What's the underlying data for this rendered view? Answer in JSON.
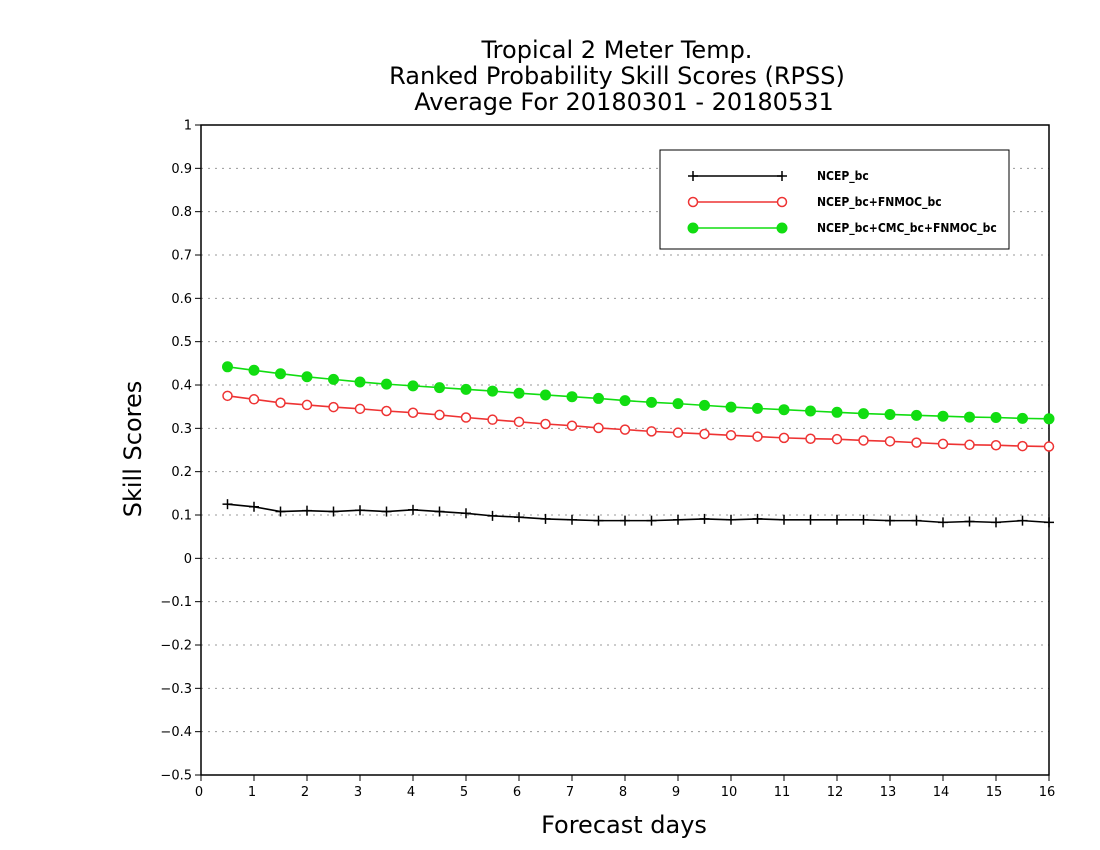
{
  "chart_data": {
    "type": "line",
    "title_lines": [
      "Tropical 2 Meter Temp.",
      "Ranked Probability Skill Scores (RPSS)",
      "Average For 20180301 - 20180531"
    ],
    "xlabel": "Forecast days",
    "ylabel": "Skill Scores",
    "xlim": [
      0,
      16
    ],
    "ylim": [
      -0.5,
      1
    ],
    "xticks": [
      0,
      1,
      2,
      3,
      4,
      5,
      6,
      7,
      8,
      9,
      10,
      11,
      12,
      13,
      14,
      15,
      16
    ],
    "yticks": [
      1,
      0.9,
      0.8,
      0.7,
      0.6,
      0.5,
      0.4,
      0.3,
      0.2,
      0.1,
      0,
      -0.1,
      -0.2,
      -0.3,
      -0.4,
      -0.5
    ],
    "ytick_labels": [
      "1",
      "0.9",
      "0.8",
      "0.7",
      "0.6",
      "0.5",
      "0.4",
      "0.3",
      "0.2",
      "0.1",
      "0",
      "−0.1",
      "−0.2",
      "−0.3",
      "−0.4",
      "−0.5"
    ],
    "grid": "horizontal dotted",
    "legend_position": "top-right",
    "x": [
      0.5,
      1.0,
      1.5,
      2.0,
      2.5,
      3.0,
      3.5,
      4.0,
      4.5,
      5.0,
      5.5,
      6.0,
      6.5,
      7.0,
      7.5,
      8.0,
      8.5,
      9.0,
      9.5,
      10.0,
      10.5,
      11.0,
      11.5,
      12.0,
      12.5,
      13.0,
      13.5,
      14.0,
      14.5,
      15.0,
      15.5,
      16.0
    ],
    "series": [
      {
        "name": "NCEP_bc",
        "color": "#000000",
        "marker": "plus",
        "values": [
          0.125,
          0.119,
          0.108,
          0.11,
          0.108,
          0.111,
          0.108,
          0.112,
          0.108,
          0.104,
          0.098,
          0.095,
          0.091,
          0.089,
          0.087,
          0.087,
          0.087,
          0.089,
          0.091,
          0.089,
          0.091,
          0.089,
          0.089,
          0.089,
          0.089,
          0.087,
          0.087,
          0.083,
          0.085,
          0.083,
          0.087,
          0.083
        ]
      },
      {
        "name": "NCEP_bc+FNMOC_bc",
        "color": "#ee3333",
        "marker": "open-circle",
        "values": [
          0.375,
          0.367,
          0.359,
          0.354,
          0.349,
          0.345,
          0.34,
          0.336,
          0.331,
          0.325,
          0.32,
          0.315,
          0.31,
          0.306,
          0.301,
          0.297,
          0.293,
          0.29,
          0.287,
          0.284,
          0.281,
          0.278,
          0.276,
          0.275,
          0.272,
          0.27,
          0.267,
          0.264,
          0.262,
          0.261,
          0.259,
          0.258
        ]
      },
      {
        "name": "NCEP_bc+CMC_bc+FNMOC_bc",
        "color": "#11dd11",
        "marker": "filled-circle",
        "values": [
          0.442,
          0.434,
          0.426,
          0.419,
          0.413,
          0.407,
          0.402,
          0.398,
          0.394,
          0.39,
          0.386,
          0.381,
          0.377,
          0.373,
          0.369,
          0.364,
          0.36,
          0.357,
          0.353,
          0.349,
          0.346,
          0.343,
          0.34,
          0.337,
          0.334,
          0.332,
          0.33,
          0.328,
          0.326,
          0.325,
          0.323,
          0.322
        ]
      }
    ]
  }
}
